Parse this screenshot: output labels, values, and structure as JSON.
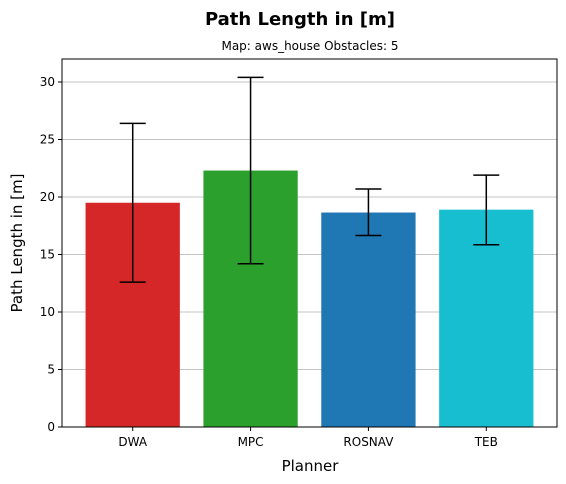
{
  "chart_data": {
    "type": "bar",
    "title": "Path Length in [m]",
    "subtitle": "Map: aws_house Obstacles: 5",
    "xlabel": "Planner",
    "ylabel": "Path Length in [m]",
    "categories": [
      "DWA",
      "MPC",
      "ROSNAV",
      "TEB"
    ],
    "values": [
      19.5,
      22.3,
      18.65,
      18.9
    ],
    "error_low": [
      12.6,
      14.2,
      16.65,
      15.85
    ],
    "error_high": [
      26.4,
      30.4,
      20.7,
      21.9
    ],
    "colors": [
      "#d62728",
      "#2ca02c",
      "#1f77b4",
      "#17becf"
    ],
    "ylim": [
      0,
      32
    ],
    "yticks": [
      0,
      5,
      10,
      15,
      20,
      25,
      30
    ],
    "grid": "y"
  }
}
